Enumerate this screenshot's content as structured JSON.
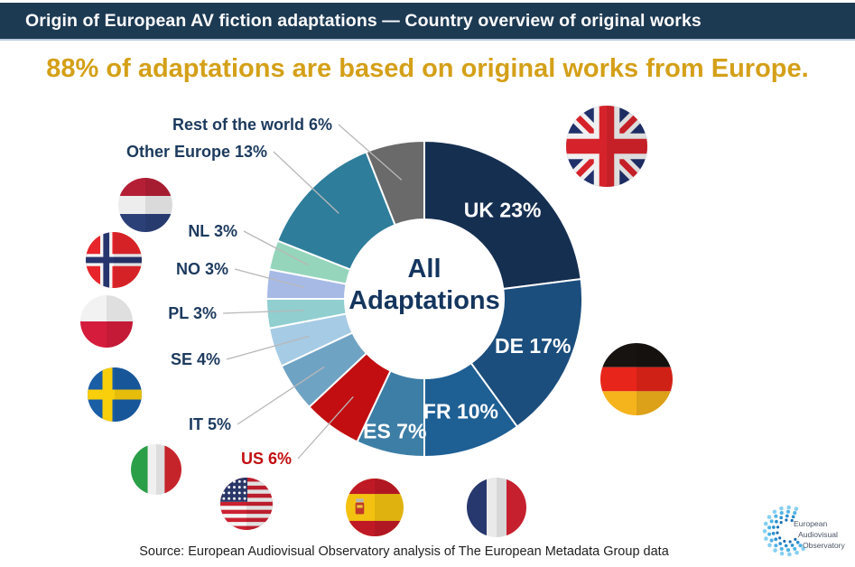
{
  "header": {
    "title": "Origin of European AV fiction adaptations — Country overview of original works"
  },
  "subtitle": "88% of adaptations are based on original works from Europe.",
  "chart_data": {
    "type": "pie",
    "variant": "donut",
    "center_label_lines": [
      "All",
      "Adaptations"
    ],
    "units": "%",
    "total": 100,
    "slices": [
      {
        "name": "UK",
        "label": "UK 23%",
        "value": 23,
        "color": "#152f51",
        "label_placement": "inside",
        "label_color": "#ffffff"
      },
      {
        "name": "DE",
        "label": "DE 17%",
        "value": 17,
        "color": "#1b4e7d",
        "label_placement": "inside",
        "label_color": "#ffffff"
      },
      {
        "name": "FR",
        "label": "FR 10%",
        "value": 10,
        "color": "#1e5f94",
        "label_placement": "inside",
        "label_color": "#ffffff"
      },
      {
        "name": "ES",
        "label": "ES 7%",
        "value": 7,
        "color": "#3d7ea6",
        "label_placement": "inside",
        "label_color": "#ffffff"
      },
      {
        "name": "US",
        "label": "US 6%",
        "value": 6,
        "color": "#c20e11",
        "label_placement": "outside",
        "label_color": "#c20e11"
      },
      {
        "name": "IT",
        "label": "IT 5%",
        "value": 5,
        "color": "#6fa3c4",
        "label_placement": "outside",
        "label_color": "#1c3a5e"
      },
      {
        "name": "SE",
        "label": "SE 4%",
        "value": 4,
        "color": "#a6cbe5",
        "label_placement": "outside",
        "label_color": "#1c3a5e"
      },
      {
        "name": "PL",
        "label": "PL 3%",
        "value": 3,
        "color": "#90ced0",
        "label_placement": "outside",
        "label_color": "#1c3a5e"
      },
      {
        "name": "NO",
        "label": "NO 3%",
        "value": 3,
        "color": "#a7bae6",
        "label_placement": "outside",
        "label_color": "#1c3a5e"
      },
      {
        "name": "NL",
        "label": "NL 3%",
        "value": 3,
        "color": "#95d5bc",
        "label_placement": "outside",
        "label_color": "#1c3a5e"
      },
      {
        "name": "Other Europe",
        "label": "Other Europe 13%",
        "value": 13,
        "color": "#2e7d9b",
        "label_placement": "outside",
        "label_color": "#1c3a5e"
      },
      {
        "name": "Rest of the world",
        "label": "Rest of the world 6%",
        "value": 6,
        "color": "#6a6a6a",
        "label_placement": "outside",
        "label_color": "#1c3a5e"
      }
    ],
    "layout": {
      "start_angle_deg": 0,
      "clockwise": true,
      "legend": "none",
      "leader_line_color": "#b8b8b8",
      "slice_separator_color": "#ffffff"
    }
  },
  "flags": [
    {
      "name": "uk-flag"
    },
    {
      "name": "germany-flag"
    },
    {
      "name": "netherlands-flag"
    },
    {
      "name": "norway-flag"
    },
    {
      "name": "poland-flag"
    },
    {
      "name": "sweden-flag"
    },
    {
      "name": "italy-flag"
    },
    {
      "name": "us-flag"
    },
    {
      "name": "spain-flag"
    },
    {
      "name": "france-flag"
    }
  ],
  "source": "Source: European Audiovisual Observatory analysis of The European Metadata Group data",
  "logo": {
    "lines": [
      "European",
      "Audiovisual",
      "Observatory"
    ]
  }
}
